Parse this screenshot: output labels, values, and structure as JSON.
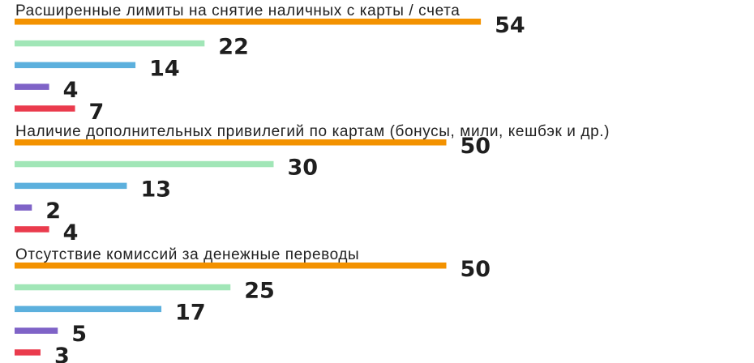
{
  "chart_data": {
    "type": "bar",
    "orientation": "horizontal",
    "grid": false,
    "legend": "none",
    "colors": [
      "#f39200",
      "#a1e6b7",
      "#5cb0dd",
      "#7f63c7",
      "#ea3b4d"
    ],
    "groups": [
      {
        "title": "Расширенные лимиты на снятие наличных с карты / счета",
        "values": [
          54,
          22,
          14,
          4,
          7
        ]
      },
      {
        "title": "Наличие дополнительных привилегий по картам (бонусы, мили, кешбэк и др.)",
        "values": [
          50,
          30,
          13,
          2,
          4
        ]
      },
      {
        "title": "Отсутствие комиссий за денежные переводы",
        "values": [
          50,
          25,
          17,
          5,
          3
        ]
      }
    ]
  }
}
